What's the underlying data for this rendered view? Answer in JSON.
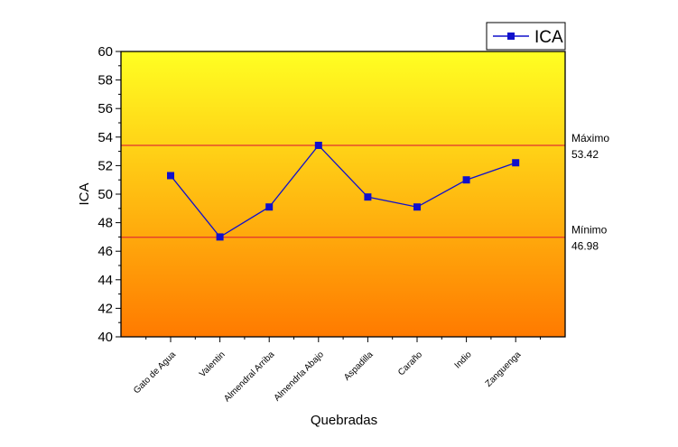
{
  "chart_data": {
    "type": "line",
    "categories": [
      "Gato de Agua",
      "Valentin",
      "Almendral Arriba",
      "Almendrla Abajo",
      "Aspadilla",
      "Caraño",
      "Indio",
      "Zanguenga"
    ],
    "series": [
      {
        "name": "ICA",
        "values": [
          51.3,
          47.0,
          49.1,
          53.42,
          49.8,
          49.1,
          51.0,
          52.2
        ],
        "color": "#1010cc"
      }
    ],
    "xlabel": "Quebradas",
    "ylabel": "ICA",
    "ylim": [
      40,
      60
    ],
    "yticks": [
      40,
      42,
      44,
      46,
      48,
      50,
      52,
      54,
      56,
      58,
      60
    ],
    "reference_lines": [
      {
        "name": "Máximo",
        "value": 53.42,
        "value_label": "53.42",
        "color": "#e03030"
      },
      {
        "name": "Mínimo",
        "value": 46.98,
        "value_label": "46.98",
        "color": "#e03030"
      }
    ],
    "background_gradient": [
      "#ffff22",
      "#ff7a00"
    ],
    "legend_position": "top-right",
    "grid": false
  }
}
